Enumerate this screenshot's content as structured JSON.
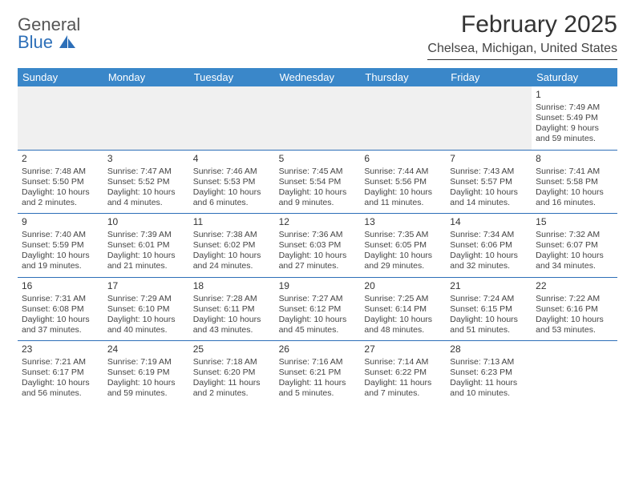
{
  "logo": {
    "line1": "General",
    "line2": "Blue"
  },
  "title": "February 2025",
  "subtitle": "Chelsea, Michigan, United States",
  "colors": {
    "header_bg": "#3a87c9",
    "header_text": "#ffffff",
    "border": "#2d6fb8",
    "empty_bg": "#f0f0f0",
    "text": "#444444",
    "logo_gray": "#555555",
    "logo_blue": "#2d6fb8"
  },
  "dayNames": [
    "Sunday",
    "Monday",
    "Tuesday",
    "Wednesday",
    "Thursday",
    "Friday",
    "Saturday"
  ],
  "days": {
    "1": {
      "sunrise": "7:49 AM",
      "sunset": "5:49 PM",
      "daylight": "9 hours and 59 minutes."
    },
    "2": {
      "sunrise": "7:48 AM",
      "sunset": "5:50 PM",
      "daylight": "10 hours and 2 minutes."
    },
    "3": {
      "sunrise": "7:47 AM",
      "sunset": "5:52 PM",
      "daylight": "10 hours and 4 minutes."
    },
    "4": {
      "sunrise": "7:46 AM",
      "sunset": "5:53 PM",
      "daylight": "10 hours and 6 minutes."
    },
    "5": {
      "sunrise": "7:45 AM",
      "sunset": "5:54 PM",
      "daylight": "10 hours and 9 minutes."
    },
    "6": {
      "sunrise": "7:44 AM",
      "sunset": "5:56 PM",
      "daylight": "10 hours and 11 minutes."
    },
    "7": {
      "sunrise": "7:43 AM",
      "sunset": "5:57 PM",
      "daylight": "10 hours and 14 minutes."
    },
    "8": {
      "sunrise": "7:41 AM",
      "sunset": "5:58 PM",
      "daylight": "10 hours and 16 minutes."
    },
    "9": {
      "sunrise": "7:40 AM",
      "sunset": "5:59 PM",
      "daylight": "10 hours and 19 minutes."
    },
    "10": {
      "sunrise": "7:39 AM",
      "sunset": "6:01 PM",
      "daylight": "10 hours and 21 minutes."
    },
    "11": {
      "sunrise": "7:38 AM",
      "sunset": "6:02 PM",
      "daylight": "10 hours and 24 minutes."
    },
    "12": {
      "sunrise": "7:36 AM",
      "sunset": "6:03 PM",
      "daylight": "10 hours and 27 minutes."
    },
    "13": {
      "sunrise": "7:35 AM",
      "sunset": "6:05 PM",
      "daylight": "10 hours and 29 minutes."
    },
    "14": {
      "sunrise": "7:34 AM",
      "sunset": "6:06 PM",
      "daylight": "10 hours and 32 minutes."
    },
    "15": {
      "sunrise": "7:32 AM",
      "sunset": "6:07 PM",
      "daylight": "10 hours and 34 minutes."
    },
    "16": {
      "sunrise": "7:31 AM",
      "sunset": "6:08 PM",
      "daylight": "10 hours and 37 minutes."
    },
    "17": {
      "sunrise": "7:29 AM",
      "sunset": "6:10 PM",
      "daylight": "10 hours and 40 minutes."
    },
    "18": {
      "sunrise": "7:28 AM",
      "sunset": "6:11 PM",
      "daylight": "10 hours and 43 minutes."
    },
    "19": {
      "sunrise": "7:27 AM",
      "sunset": "6:12 PM",
      "daylight": "10 hours and 45 minutes."
    },
    "20": {
      "sunrise": "7:25 AM",
      "sunset": "6:14 PM",
      "daylight": "10 hours and 48 minutes."
    },
    "21": {
      "sunrise": "7:24 AM",
      "sunset": "6:15 PM",
      "daylight": "10 hours and 51 minutes."
    },
    "22": {
      "sunrise": "7:22 AM",
      "sunset": "6:16 PM",
      "daylight": "10 hours and 53 minutes."
    },
    "23": {
      "sunrise": "7:21 AM",
      "sunset": "6:17 PM",
      "daylight": "10 hours and 56 minutes."
    },
    "24": {
      "sunrise": "7:19 AM",
      "sunset": "6:19 PM",
      "daylight": "10 hours and 59 minutes."
    },
    "25": {
      "sunrise": "7:18 AM",
      "sunset": "6:20 PM",
      "daylight": "11 hours and 2 minutes."
    },
    "26": {
      "sunrise": "7:16 AM",
      "sunset": "6:21 PM",
      "daylight": "11 hours and 5 minutes."
    },
    "27": {
      "sunrise": "7:14 AM",
      "sunset": "6:22 PM",
      "daylight": "11 hours and 7 minutes."
    },
    "28": {
      "sunrise": "7:13 AM",
      "sunset": "6:23 PM",
      "daylight": "11 hours and 10 minutes."
    }
  },
  "labels": {
    "sunrise": "Sunrise:",
    "sunset": "Sunset:",
    "daylight": "Daylight:"
  },
  "layout": {
    "firstDayColumn": 6,
    "lastDay": 28,
    "columns": 7,
    "cell_fontsize": 10.5,
    "daynum_fontsize": 12,
    "title_fontsize": 30,
    "subtitle_fontsize": 16,
    "dayhead_fontsize": 13
  }
}
